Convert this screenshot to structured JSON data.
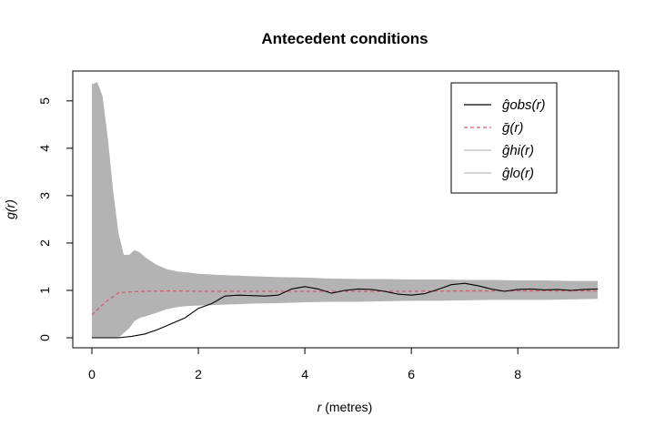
{
  "chart_data": {
    "type": "line",
    "title": "Antecedent conditions",
    "xlabel": "r (metres)",
    "ylabel": "g(r)",
    "xlim": [
      0,
      9.5
    ],
    "ylim": [
      0,
      5.4
    ],
    "x_ticks": [
      "0",
      "2",
      "4",
      "6",
      "8"
    ],
    "y_ticks": [
      "0",
      "1",
      "2",
      "3",
      "4",
      "5"
    ],
    "grid": false,
    "legend_position": "top-right",
    "legend": [
      {
        "label": "ĝobs(r)",
        "style": "solid",
        "color": "#000000"
      },
      {
        "label": "ḡ(r)",
        "style": "dashed",
        "color": "#DF536B"
      },
      {
        "label": "ĝhi(r)",
        "style": "solid",
        "color": "#BEBEBE"
      },
      {
        "label": "ĝlo(r)",
        "style": "solid",
        "color": "#BEBEBE"
      }
    ],
    "series": [
      {
        "name": "ĝobs(r)",
        "x": [
          0,
          0.25,
          0.5,
          0.75,
          1.0,
          1.25,
          1.5,
          1.75,
          2.0,
          2.25,
          2.5,
          2.75,
          3.0,
          3.25,
          3.5,
          3.75,
          4.0,
          4.25,
          4.5,
          4.75,
          5.0,
          5.25,
          5.5,
          5.75,
          6.0,
          6.25,
          6.5,
          6.75,
          7.0,
          7.25,
          7.5,
          7.75,
          8.0,
          8.25,
          8.5,
          8.75,
          9.0,
          9.25,
          9.5
        ],
        "values": [
          0,
          0,
          0,
          0.03,
          0.08,
          0.18,
          0.3,
          0.42,
          0.62,
          0.72,
          0.88,
          0.9,
          0.89,
          0.88,
          0.9,
          1.03,
          1.08,
          1.03,
          0.94,
          1.0,
          1.03,
          1.02,
          0.98,
          0.92,
          0.9,
          0.93,
          1.02,
          1.12,
          1.15,
          1.1,
          1.03,
          0.98,
          1.02,
          1.03,
          1.01,
          1.02,
          1.0,
          1.02,
          1.03
        ]
      },
      {
        "name": "ḡ(r)",
        "x": [
          0,
          0.25,
          0.5,
          0.75,
          1.0,
          1.5,
          2.0,
          3.0,
          4.0,
          5.0,
          6.0,
          7.0,
          8.0,
          9.0,
          9.5
        ],
        "values": [
          0.48,
          0.75,
          0.95,
          0.97,
          0.98,
          0.99,
          0.98,
          0.98,
          0.98,
          0.98,
          0.98,
          0.99,
          0.99,
          0.99,
          0.99
        ]
      }
    ],
    "envelope": {
      "x": [
        0,
        0.1,
        0.2,
        0.3,
        0.4,
        0.5,
        0.6,
        0.7,
        0.8,
        0.9,
        1.0,
        1.2,
        1.4,
        1.6,
        1.8,
        2.0,
        2.5,
        3.0,
        3.5,
        4.0,
        4.5,
        5.0,
        5.5,
        6.0,
        6.5,
        7.0,
        7.5,
        8.0,
        8.5,
        9.0,
        9.5
      ],
      "hi": [
        5.35,
        5.4,
        5.1,
        4.2,
        3.1,
        2.2,
        1.75,
        1.75,
        1.85,
        1.8,
        1.7,
        1.55,
        1.45,
        1.4,
        1.38,
        1.35,
        1.32,
        1.3,
        1.28,
        1.27,
        1.25,
        1.24,
        1.24,
        1.23,
        1.23,
        1.22,
        1.22,
        1.21,
        1.21,
        1.2,
        1.2
      ],
      "lo": [
        0,
        0,
        0,
        0,
        0,
        0,
        0.1,
        0.2,
        0.35,
        0.42,
        0.45,
        0.52,
        0.6,
        0.65,
        0.67,
        0.68,
        0.7,
        0.72,
        0.73,
        0.75,
        0.76,
        0.76,
        0.77,
        0.78,
        0.78,
        0.79,
        0.8,
        0.8,
        0.8,
        0.81,
        0.82
      ],
      "color": "#B3B3B3"
    }
  }
}
